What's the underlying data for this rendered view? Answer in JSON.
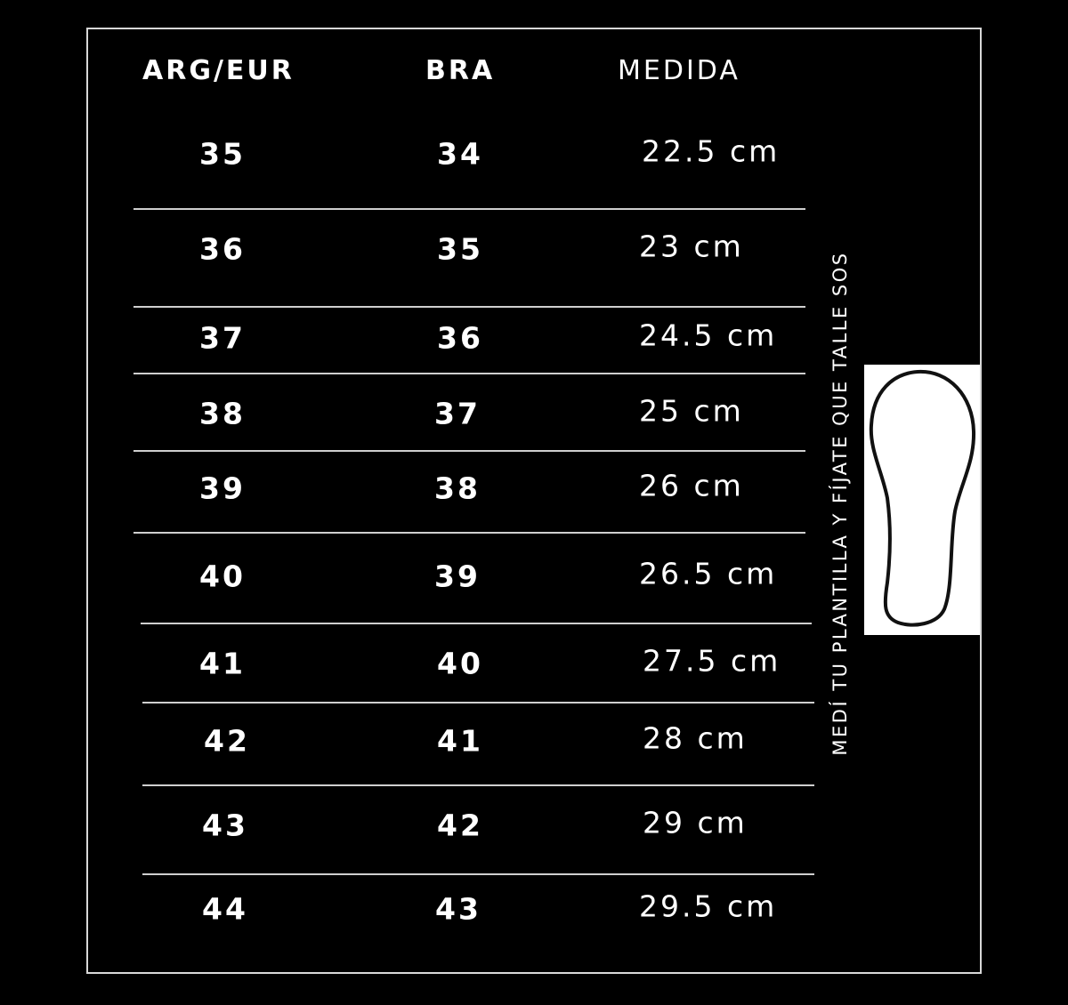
{
  "headers": {
    "arg_eur": "ARG/EUR",
    "bra": "BRA",
    "medida": "MEDIDA"
  },
  "rows": [
    {
      "arg_eur": "35",
      "bra": "34",
      "medida": "22.5 cm"
    },
    {
      "arg_eur": "36",
      "bra": "35",
      "medida": "23 cm"
    },
    {
      "arg_eur": "37",
      "bra": "36",
      "medida": "24.5 cm"
    },
    {
      "arg_eur": "38",
      "bra": "37",
      "medida": "25 cm"
    },
    {
      "arg_eur": "39",
      "bra": "38",
      "medida": "26 cm"
    },
    {
      "arg_eur": "40",
      "bra": "39",
      "medida": "26.5 cm"
    },
    {
      "arg_eur": "41",
      "bra": "40",
      "medida": "27.5 cm"
    },
    {
      "arg_eur": "42",
      "bra": "41",
      "medida": "28 cm"
    },
    {
      "arg_eur": "43",
      "bra": "42",
      "medida": "29 cm"
    },
    {
      "arg_eur": "44",
      "bra": "43",
      "medida": "29.5 cm"
    }
  ],
  "side_note": "MEDÍ TU PLANTILLA Y FÍJATE QUE TALLE SOS",
  "icon": "insole-outline-icon",
  "colors": {
    "background": "#000000",
    "text": "#ffffff",
    "border": "#d8d8d8"
  }
}
